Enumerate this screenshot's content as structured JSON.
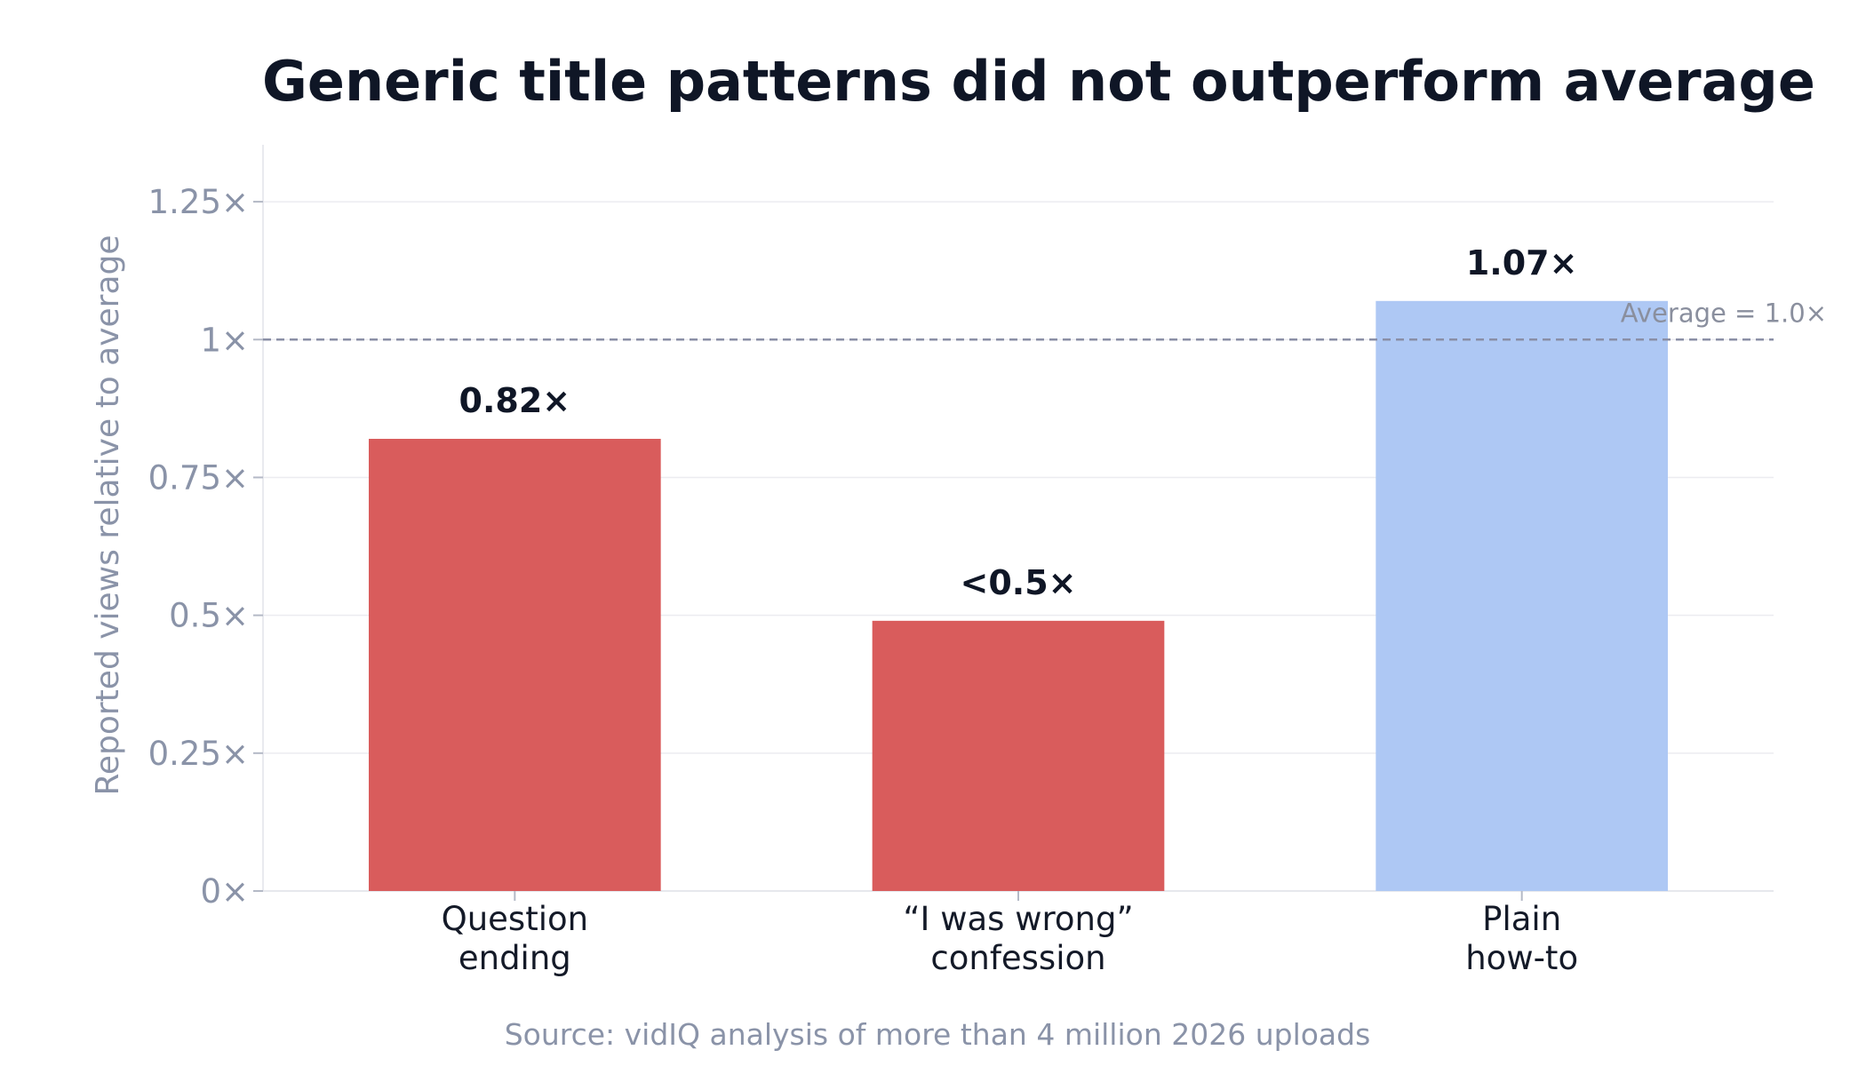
{
  "chart_data": {
    "type": "bar",
    "title": "Generic title patterns did not outperform average",
    "ylabel": "Reported views relative to average",
    "xlabel": "",
    "categories": [
      [
        "Question",
        "ending"
      ],
      [
        "“I was wrong”",
        "confession"
      ],
      [
        "Plain",
        "how-to"
      ]
    ],
    "values": [
      0.82,
      0.49,
      1.07
    ],
    "data_labels": [
      "0.82×",
      "<0.5×",
      "1.07×"
    ],
    "bar_colors": [
      "#d95c5c",
      "#d95c5c",
      "#aec8f4"
    ],
    "ylim": [
      0,
      1.35
    ],
    "yticks": [
      0,
      0.25,
      0.5,
      0.75,
      1,
      1.25
    ],
    "ytick_labels": [
      "0×",
      "0.25×",
      "0.5×",
      "0.75×",
      "1×",
      "1.25×"
    ],
    "reference_line": {
      "value": 1.0,
      "label": "Average = 1.0×",
      "color": "#8a8fa6",
      "style": "dashed"
    },
    "grid": true,
    "legend": "none",
    "source": "Source: vidIQ analysis of more than 4 million 2026 uploads"
  }
}
